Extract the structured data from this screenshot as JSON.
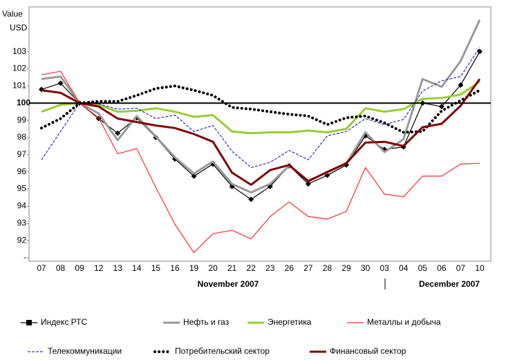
{
  "chart_data": {
    "type": "line",
    "ylabel_lines": [
      "Value",
      "USD"
    ],
    "categories": [
      "07",
      "08",
      "09",
      "12",
      "13",
      "14",
      "15",
      "16",
      "19",
      "20",
      "21",
      "22",
      "23",
      "26",
      "27",
      "28",
      "29",
      "30",
      "03",
      "04",
      "05",
      "06",
      "07",
      "10"
    ],
    "x_group_labels": [
      "November 2007",
      "December 2007"
    ],
    "ylim": [
      90.8,
      105.6
    ],
    "yticks": [
      {
        "value": 91,
        "label": "-"
      },
      92,
      93,
      94,
      95,
      96,
      97,
      98,
      99,
      100,
      101,
      102,
      103
    ],
    "reference_line": 100,
    "series": [
      {
        "name": "Индекс РТС",
        "color": "#000000",
        "style": "solid",
        "width": 1.2,
        "marker": "diamond",
        "values": [
          100.8,
          101.16,
          100,
          99.1,
          98.25,
          99.15,
          98,
          96.75,
          95.75,
          96.45,
          95.15,
          94.4,
          95.15,
          96.35,
          95.3,
          95.8,
          96.4,
          98.1,
          97.3,
          97.45,
          100,
          99.8,
          101.05,
          103
        ]
      },
      {
        "name": "Нефть и газ",
        "color": "#999999",
        "style": "solid",
        "width": 3,
        "values": [
          101.4,
          101.55,
          100,
          99.4,
          97.85,
          99.25,
          98.05,
          96.85,
          95.9,
          96.6,
          95.3,
          94.8,
          95.3,
          96.35,
          95.5,
          95.95,
          96.5,
          98.3,
          97.15,
          97.9,
          101.4,
          100.95,
          102.45,
          104.85
        ]
      },
      {
        "name": "Энергетика",
        "color": "#99cc33",
        "style": "solid",
        "width": 3,
        "values": [
          99.5,
          99.9,
          100,
          99.9,
          99.5,
          99.55,
          99.7,
          99.5,
          99.2,
          99.3,
          98.35,
          98.25,
          98.3,
          98.3,
          98.4,
          98.3,
          98.5,
          99.7,
          99.5,
          99.65,
          100.25,
          100.3,
          100.5,
          101.25
        ]
      },
      {
        "name": "Металлы и добыча",
        "color": "#ff2a2a",
        "style": "solid",
        "width": 1.2,
        "values": [
          101.65,
          101.85,
          100,
          99.15,
          97.05,
          97.35,
          95.1,
          92.95,
          91.3,
          92.4,
          92.6,
          92.1,
          93.4,
          94.25,
          93.4,
          93.25,
          93.7,
          96.25,
          94.7,
          94.55,
          95.75,
          95.75,
          96.45,
          96.5
        ]
      },
      {
        "name": "Телекоммуникации",
        "color": "#2b2bd6",
        "style": "dashed",
        "width": 1.2,
        "values": [
          96.7,
          98.35,
          100,
          99.95,
          99.65,
          99.7,
          99.1,
          99.3,
          98.35,
          98.7,
          97.2,
          96.25,
          96.55,
          97.25,
          96.7,
          98.1,
          98.35,
          99.1,
          98.75,
          99.05,
          100.7,
          101.3,
          101.55,
          103.25
        ]
      },
      {
        "name": "Потребительский сектор",
        "color": "#000000",
        "style": "dotted",
        "width": 4,
        "values": [
          98.55,
          99.1,
          100,
          100.1,
          100.1,
          100.45,
          100.85,
          101,
          100.75,
          100.45,
          99.75,
          99.65,
          99.5,
          99.35,
          99.25,
          98.75,
          99.15,
          99.25,
          98.85,
          98.3,
          98.35,
          99.55,
          100.15,
          100.75
        ]
      },
      {
        "name": "Финансовый сектор",
        "color": "#800000",
        "style": "solid",
        "width": 3,
        "values": [
          100.75,
          100.6,
          100,
          99.8,
          99.1,
          98.9,
          98.7,
          98.55,
          98.2,
          97.75,
          95.95,
          95.25,
          96.1,
          96.4,
          95.45,
          96,
          96.5,
          97.7,
          97.75,
          97.5,
          98.6,
          98.8,
          99.85,
          101.4
        ]
      }
    ]
  }
}
